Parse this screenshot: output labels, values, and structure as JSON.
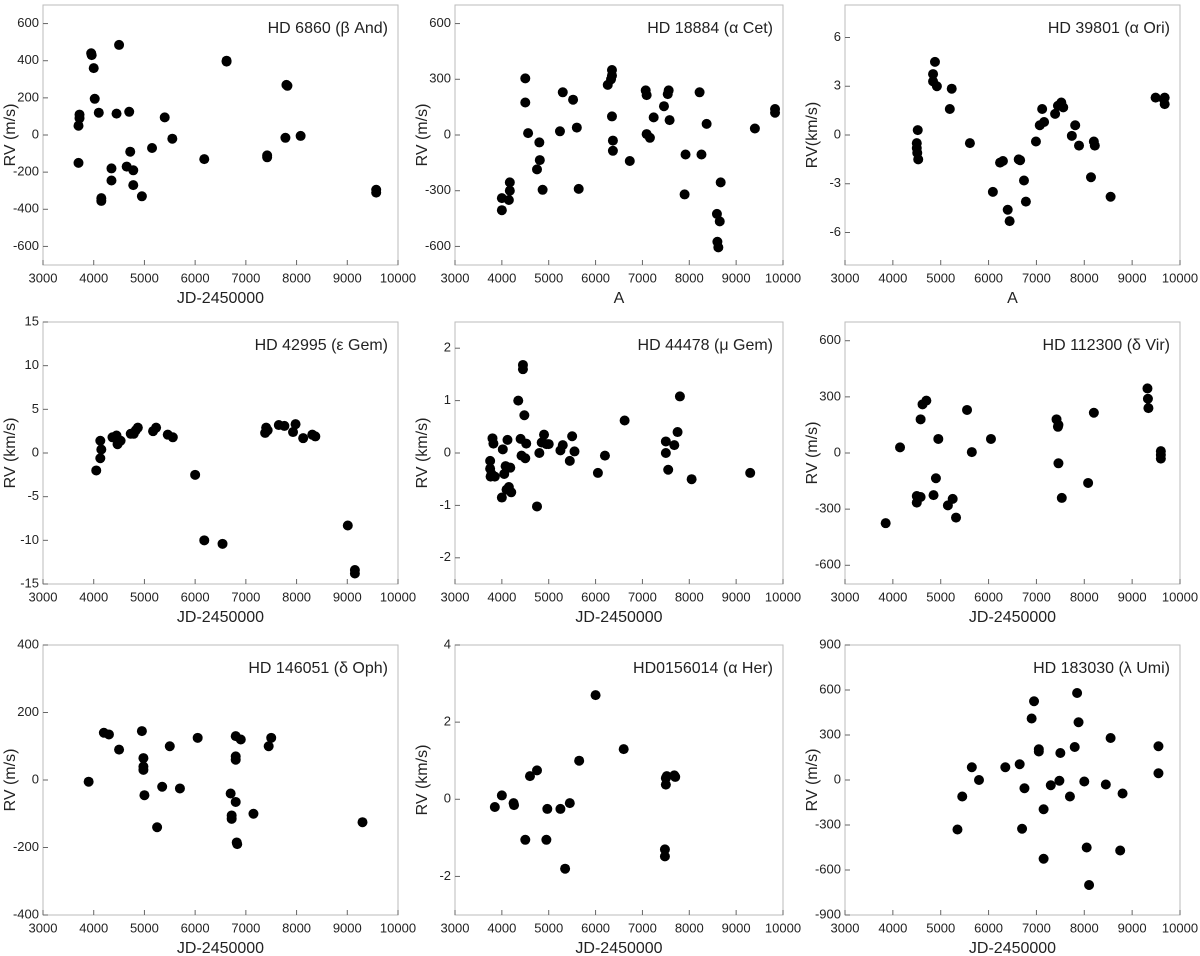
{
  "chart_data": [
    {
      "type": "scatter",
      "title": "HD 6860 (β And)",
      "x_label": "JD-2450000",
      "y_label": "RV (m/s)",
      "color": "#000000",
      "xlim": [
        3000,
        10000
      ],
      "xticks": [
        3000,
        4000,
        5000,
        6000,
        7000,
        8000,
        9000,
        10000
      ],
      "ylim": [
        -700,
        700
      ],
      "yticks": [
        -600,
        -400,
        -200,
        0,
        200,
        400,
        600
      ],
      "x": [
        3700,
        3720,
        3720,
        3700,
        3950,
        3960,
        4000,
        4020,
        4100,
        4150,
        4150,
        4350,
        4350,
        4450,
        4500,
        4650,
        4700,
        4720,
        4780,
        4780,
        4950,
        5150,
        5400,
        5550,
        6180,
        6620,
        6620,
        7420,
        7420,
        7780,
        7800,
        7820,
        8080,
        9570,
        9570
      ],
      "values": [
        -150,
        110,
        90,
        50,
        440,
        430,
        360,
        195,
        120,
        -340,
        -355,
        -180,
        -245,
        115,
        485,
        -170,
        125,
        -90,
        -270,
        -190,
        -330,
        -70,
        95,
        -20,
        -130,
        400,
        395,
        -110,
        -120,
        -15,
        270,
        265,
        -5,
        -295,
        -310
      ]
    },
    {
      "type": "scatter",
      "title": "HD 18884 (α Cet)",
      "x_label": "A",
      "y_label": "RV (m/s)",
      "color": "#000000",
      "xlim": [
        3000,
        10000
      ],
      "xticks": [
        3000,
        4000,
        5000,
        6000,
        7000,
        8000,
        9000,
        10000
      ],
      "ylim": [
        -700,
        700
      ],
      "yticks": [
        -600,
        -300,
        0,
        300,
        600
      ],
      "x": [
        4000,
        4000,
        4150,
        4170,
        4170,
        4500,
        4500,
        4560,
        4750,
        4800,
        4810,
        4870,
        5240,
        5300,
        5520,
        5600,
        5640,
        6260,
        6330,
        6350,
        6350,
        6350,
        6370,
        6370,
        6730,
        7070,
        7090,
        7090,
        7160,
        7240,
        7460,
        7540,
        7560,
        7580,
        7900,
        7920,
        8220,
        8260,
        8370,
        8590,
        8650,
        8600,
        8620,
        8670,
        9400,
        9830,
        9830
      ],
      "values": [
        -340,
        -405,
        -350,
        -255,
        -300,
        305,
        175,
        10,
        -185,
        -40,
        -135,
        -295,
        20,
        230,
        190,
        40,
        -290,
        270,
        300,
        350,
        320,
        100,
        -30,
        -85,
        -140,
        240,
        215,
        5,
        -15,
        95,
        155,
        220,
        240,
        80,
        -320,
        -105,
        230,
        -105,
        60,
        -425,
        -465,
        -575,
        -605,
        -255,
        35,
        140,
        120
      ]
    },
    {
      "type": "scatter",
      "title": "HD 39801 (α Ori)",
      "x_label": "A",
      "y_label": "RV(km/s)",
      "color": "#000000",
      "xlim": [
        3000,
        10000
      ],
      "xticks": [
        3000,
        4000,
        5000,
        6000,
        7000,
        8000,
        9000,
        10000
      ],
      "ylim": [
        -8,
        8
      ],
      "yticks": [
        -6,
        -3,
        0,
        3,
        6
      ],
      "x": [
        4520,
        4500,
        4500,
        4510,
        4530,
        4840,
        4880,
        4920,
        4840,
        5190,
        5230,
        5610,
        6090,
        6240,
        6300,
        6400,
        6440,
        6630,
        6660,
        6740,
        6780,
        6990,
        7070,
        7120,
        7160,
        7390,
        7450,
        7520,
        7560,
        7740,
        7810,
        7890,
        8140,
        8200,
        8220,
        8550,
        9490,
        9660,
        9680,
        9680
      ],
      "values": [
        0.3,
        -0.5,
        -0.8,
        -1.1,
        -1.5,
        3.75,
        4.5,
        3.0,
        3.3,
        1.6,
        2.85,
        -0.5,
        -3.5,
        -1.7,
        -1.6,
        -4.6,
        -5.3,
        -1.5,
        -1.55,
        -2.8,
        -4.1,
        -0.4,
        0.6,
        1.6,
        0.8,
        1.3,
        1.8,
        2.0,
        1.7,
        -0.05,
        0.6,
        -0.65,
        -2.6,
        -0.4,
        -0.65,
        -3.8,
        2.3,
        2.2,
        1.9,
        2.3
      ]
    },
    {
      "type": "scatter",
      "title": "HD 42995 (ε Gem)",
      "x_label": "JD-2450000",
      "y_label": "RV (km/s)",
      "color": "#000000",
      "xlim": [
        3000,
        10000
      ],
      "xticks": [
        3000,
        4000,
        5000,
        6000,
        7000,
        8000,
        9000,
        10000
      ],
      "ylim": [
        -15,
        15
      ],
      "yticks": [
        -15,
        -10,
        -5,
        0,
        5,
        10,
        15
      ],
      "x": [
        4050,
        4130,
        4150,
        4130,
        4370,
        4450,
        4470,
        4530,
        4730,
        4790,
        4830,
        4870,
        5170,
        5230,
        5460,
        5560,
        6000,
        6180,
        6540,
        7380,
        7400,
        7430,
        7650,
        7760,
        7930,
        7980,
        8130,
        8310,
        8370,
        9010,
        9150,
        9150
      ],
      "values": [
        -2,
        1.4,
        0.4,
        -0.6,
        1.8,
        2.0,
        1.0,
        1.4,
        2.2,
        2.2,
        2.6,
        2.9,
        2.5,
        2.9,
        2.1,
        1.8,
        -2.5,
        -10,
        -10.4,
        2.3,
        2.9,
        2.6,
        3.2,
        3.1,
        2.4,
        3.3,
        1.7,
        2.1,
        1.9,
        -8.3,
        -13.8,
        -13.4
      ]
    },
    {
      "type": "scatter",
      "title": "HD 44478 (μ Gem)",
      "x_label": "JD-2450000",
      "y_label": "RV (km/s)",
      "color": "#000000",
      "xlim": [
        3000,
        10000
      ],
      "xticks": [
        3000,
        4000,
        5000,
        6000,
        7000,
        8000,
        9000,
        10000
      ],
      "ylim": [
        -2.5,
        2.5
      ],
      "yticks": [
        -2,
        -1,
        0,
        1,
        2
      ],
      "x": [
        3750,
        3750,
        3760,
        3780,
        3800,
        3820,
        3850,
        4000,
        4020,
        4050,
        4080,
        4100,
        4120,
        4150,
        4180,
        4200,
        4350,
        4400,
        4420,
        4450,
        4450,
        4480,
        4500,
        4520,
        4750,
        4800,
        4850,
        4900,
        4950,
        5000,
        5250,
        5300,
        5450,
        5500,
        5550,
        6050,
        6200,
        6620,
        7500,
        7500,
        7550,
        7680,
        7750,
        7800,
        8050,
        9300
      ],
      "values": [
        -0.15,
        -0.3,
        -0.45,
        -0.4,
        0.28,
        0.18,
        -0.45,
        -0.85,
        0.07,
        -0.4,
        -0.25,
        -0.7,
        0.25,
        -0.65,
        -0.28,
        -0.75,
        1.0,
        0.27,
        -0.05,
        1.68,
        1.6,
        0.72,
        -0.1,
        0.18,
        -1.02,
        0.0,
        0.2,
        0.35,
        0.17,
        0.17,
        0.05,
        0.15,
        -0.15,
        0.32,
        0.03,
        -0.38,
        -0.05,
        0.62,
        0.22,
        0.0,
        -0.32,
        0.15,
        0.4,
        1.08,
        -0.5,
        -0.38
      ]
    },
    {
      "type": "scatter",
      "title": "HD 112300 (δ Vir)",
      "x_label": "JD-2450000",
      "y_label": "RV (m/s)",
      "color": "#000000",
      "xlim": [
        3000,
        10000
      ],
      "xticks": [
        3000,
        4000,
        5000,
        6000,
        7000,
        8000,
        9000,
        10000
      ],
      "ylim": [
        -700,
        700
      ],
      "yticks": [
        -600,
        -300,
        0,
        300,
        600
      ],
      "x": [
        3850,
        4150,
        4500,
        4500,
        4580,
        4580,
        4620,
        4700,
        4850,
        4900,
        4950,
        5150,
        5250,
        5320,
        5550,
        5650,
        6050,
        7420,
        7450,
        7460,
        7460,
        7530,
        8080,
        8200,
        9320,
        9330,
        9340,
        9600,
        9600,
        9600
      ],
      "values": [
        -375,
        30,
        -230,
        -265,
        -235,
        180,
        260,
        280,
        -225,
        -135,
        75,
        -280,
        -245,
        -345,
        230,
        5,
        75,
        180,
        140,
        150,
        -55,
        -240,
        -160,
        215,
        345,
        290,
        240,
        10,
        -30,
        -10
      ]
    },
    {
      "type": "scatter",
      "title": "HD 146051 (δ Oph)",
      "x_label": "JD-2450000",
      "y_label": "RV (m/s)",
      "color": "#000000",
      "xlim": [
        3000,
        10000
      ],
      "xticks": [
        3000,
        4000,
        5000,
        6000,
        7000,
        8000,
        9000,
        10000
      ],
      "ylim": [
        -400,
        400
      ],
      "yticks": [
        -400,
        -200,
        0,
        200,
        400
      ],
      "x": [
        3900,
        4200,
        4300,
        4500,
        4950,
        4980,
        4980,
        4980,
        5000,
        5250,
        5350,
        5500,
        5700,
        6050,
        6700,
        6720,
        6720,
        6800,
        6800,
        6800,
        6800,
        6820,
        6830,
        6900,
        7150,
        7450,
        7500,
        9300
      ],
      "values": [
        -5,
        140,
        135,
        90,
        145,
        65,
        40,
        30,
        -45,
        -140,
        -20,
        100,
        -25,
        125,
        -40,
        -105,
        -115,
        -65,
        60,
        70,
        130,
        -185,
        -190,
        120,
        -100,
        100,
        125,
        -125
      ]
    },
    {
      "type": "scatter",
      "title": "HD0156014 (α Her)",
      "x_label": "JD-2450000",
      "y_label": "RV (km/s)",
      "color": "#000000",
      "xlim": [
        3000,
        10000
      ],
      "xticks": [
        3000,
        4000,
        5000,
        6000,
        7000,
        8000,
        9000,
        10000
      ],
      "ylim": [
        -3,
        4
      ],
      "yticks": [
        -2,
        0,
        2,
        4
      ],
      "x": [
        3850,
        4000,
        4250,
        4260,
        4500,
        4600,
        4750,
        4950,
        4970,
        5250,
        5350,
        5450,
        5650,
        6000,
        6600,
        7480,
        7480,
        7500,
        7500,
        7520,
        7680,
        7700
      ],
      "values": [
        -0.2,
        0.1,
        -0.1,
        -0.15,
        -1.05,
        0.6,
        0.75,
        -1.05,
        -0.25,
        -0.25,
        -1.8,
        -0.1,
        1.0,
        2.7,
        1.3,
        -1.3,
        -1.48,
        0.55,
        0.38,
        0.6,
        0.62,
        0.58
      ]
    },
    {
      "type": "scatter",
      "title": "HD 183030 (λ Umi)",
      "x_label": "JD-2450000",
      "y_label": "RV (m/s)",
      "color": "#000000",
      "xlim": [
        3000,
        10000
      ],
      "xticks": [
        3000,
        4000,
        5000,
        6000,
        7000,
        8000,
        9000,
        10000
      ],
      "ylim": [
        -900,
        900
      ],
      "yticks": [
        -900,
        -600,
        -300,
        0,
        300,
        600,
        900
      ],
      "x": [
        5350,
        5450,
        5650,
        5800,
        6350,
        6650,
        6700,
        6750,
        6900,
        6950,
        7050,
        7050,
        7150,
        7150,
        7300,
        7480,
        7500,
        7700,
        7800,
        7850,
        7880,
        8000,
        8050,
        8100,
        8450,
        8550,
        8750,
        8800,
        9550,
        9550
      ],
      "values": [
        -330,
        -110,
        85,
        0,
        85,
        105,
        -325,
        -55,
        410,
        525,
        190,
        205,
        -195,
        -525,
        -35,
        -5,
        180,
        -110,
        220,
        580,
        385,
        -10,
        -450,
        -700,
        -30,
        280,
        -470,
        -90,
        225,
        45
      ]
    }
  ]
}
